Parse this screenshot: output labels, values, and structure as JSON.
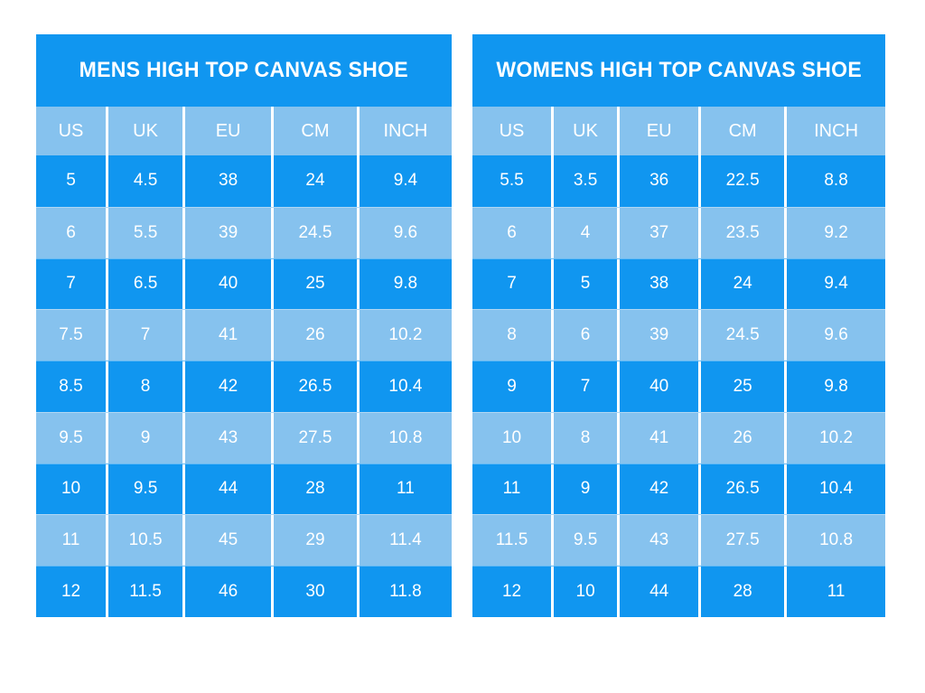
{
  "colors": {
    "primary_blue": "#1096f0",
    "light_blue": "#86c2ee",
    "text": "#ffffff",
    "page_background": "#ffffff"
  },
  "chart_data": [
    {
      "type": "table",
      "title": "MENS HIGH TOP CANVAS SHOE",
      "columns": [
        "US",
        "UK",
        "EU",
        "CM",
        "INCH"
      ],
      "rows": [
        [
          "5",
          "4.5",
          "38",
          "24",
          "9.4"
        ],
        [
          "6",
          "5.5",
          "39",
          "24.5",
          "9.6"
        ],
        [
          "7",
          "6.5",
          "40",
          "25",
          "9.8"
        ],
        [
          "7.5",
          "7",
          "41",
          "26",
          "10.2"
        ],
        [
          "8.5",
          "8",
          "42",
          "26.5",
          "10.4"
        ],
        [
          "9.5",
          "9",
          "43",
          "27.5",
          "10.8"
        ],
        [
          "10",
          "9.5",
          "44",
          "28",
          "11"
        ],
        [
          "11",
          "10.5",
          "45",
          "29",
          "11.4"
        ],
        [
          "12",
          "11.5",
          "46",
          "30",
          "11.8"
        ]
      ],
      "layout": {
        "striping": "odd-rows-dark-blue, even-rows-light-blue",
        "header_background": "light_blue"
      }
    },
    {
      "type": "table",
      "title": "WOMENS HIGH TOP CANVAS SHOE",
      "columns": [
        "US",
        "UK",
        "EU",
        "CM",
        "INCH"
      ],
      "rows": [
        [
          "5.5",
          "3.5",
          "36",
          "22.5",
          "8.8"
        ],
        [
          "6",
          "4",
          "37",
          "23.5",
          "9.2"
        ],
        [
          "7",
          "5",
          "38",
          "24",
          "9.4"
        ],
        [
          "8",
          "6",
          "39",
          "24.5",
          "9.6"
        ],
        [
          "9",
          "7",
          "40",
          "25",
          "9.8"
        ],
        [
          "10",
          "8",
          "41",
          "26",
          "10.2"
        ],
        [
          "11",
          "9",
          "42",
          "26.5",
          "10.4"
        ],
        [
          "11.5",
          "9.5",
          "43",
          "27.5",
          "10.8"
        ],
        [
          "12",
          "10",
          "44",
          "28",
          "11"
        ]
      ],
      "layout": {
        "striping": "odd-rows-dark-blue, even-rows-light-blue",
        "header_background": "light_blue"
      }
    }
  ]
}
